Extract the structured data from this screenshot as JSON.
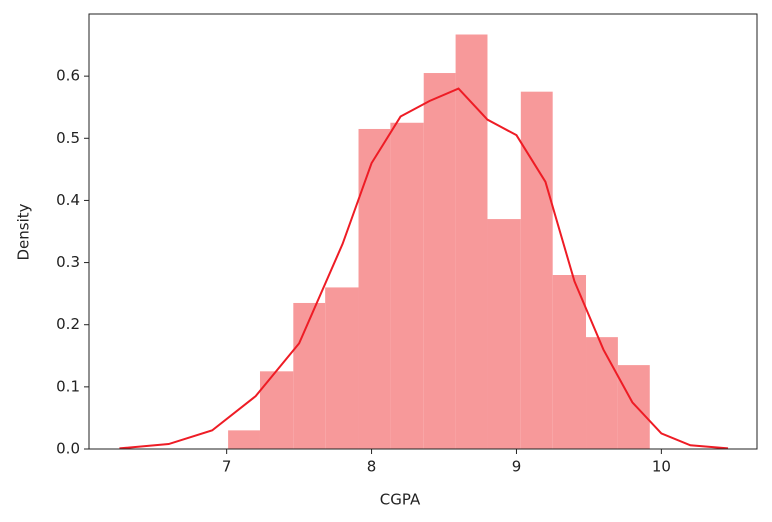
{
  "chart_data": {
    "type": "histogram",
    "xlabel": "CGPA",
    "ylabel": "Density",
    "bins": [
      7.01,
      7.23,
      7.46,
      7.68,
      7.91,
      8.13,
      8.36,
      8.58,
      8.8,
      9.03,
      9.25,
      9.48,
      9.7,
      9.92
    ],
    "values": [
      0.03,
      0.125,
      0.235,
      0.26,
      0.515,
      0.525,
      0.605,
      0.667,
      0.37,
      0.575,
      0.28,
      0.18,
      0.135
    ],
    "color": "#f7999a",
    "kde": {
      "color": "#ee1c25",
      "x": [
        6.26,
        6.6,
        6.9,
        7.2,
        7.5,
        7.8,
        8.0,
        8.2,
        8.4,
        8.6,
        8.8,
        9.0,
        9.2,
        9.4,
        9.6,
        9.8,
        10.0,
        10.2,
        10.46
      ],
      "values": [
        0.001,
        0.008,
        0.03,
        0.085,
        0.17,
        0.33,
        0.46,
        0.535,
        0.56,
        0.58,
        0.53,
        0.505,
        0.43,
        0.27,
        0.16,
        0.075,
        0.025,
        0.006,
        0.001
      ]
    },
    "xlim": [
      6.05,
      10.66
    ],
    "ylim": [
      0,
      0.7
    ],
    "xticks": [
      7,
      8,
      9,
      10
    ],
    "yticks": [
      {
        "value": 0,
        "label": "0.0"
      },
      0.1,
      0.2,
      0.3,
      0.4,
      0.5,
      0.6
    ]
  }
}
